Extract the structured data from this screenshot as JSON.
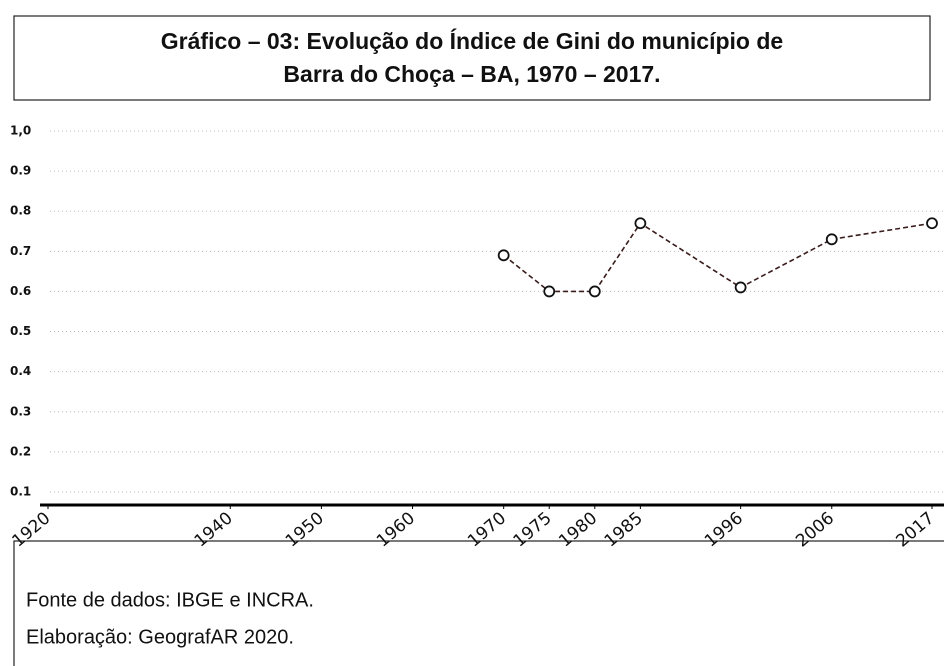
{
  "chart_data": {
    "type": "line",
    "title_lines": [
      "Gráfico – 03: Evolução do Índice de Gini do município de",
      "Barra do Choça – BA, 1970 – 2017."
    ],
    "x": [
      1970,
      1975,
      1980,
      1985,
      1996,
      2006,
      2017
    ],
    "values": [
      0.69,
      0.6,
      0.6,
      0.77,
      0.61,
      0.73,
      0.77
    ],
    "color": "#3a1c1c",
    "xlim": [
      1920,
      2017
    ],
    "xticks": [
      1920,
      1940,
      1950,
      1960,
      1970,
      1975,
      1980,
      1985,
      1996,
      2006,
      2017
    ],
    "ylim": [
      0.07,
      1.0
    ],
    "yticks": [
      0.1,
      0.2,
      0.3,
      0.4,
      0.5,
      0.6,
      0.7,
      0.8,
      0.9,
      {
        "value": 1,
        "label": "1,0"
      }
    ],
    "grid": true
  },
  "footer": [
    "Fonte de dados: IBGE e INCRA.",
    "Elaboração: GeografAR 2020."
  ]
}
